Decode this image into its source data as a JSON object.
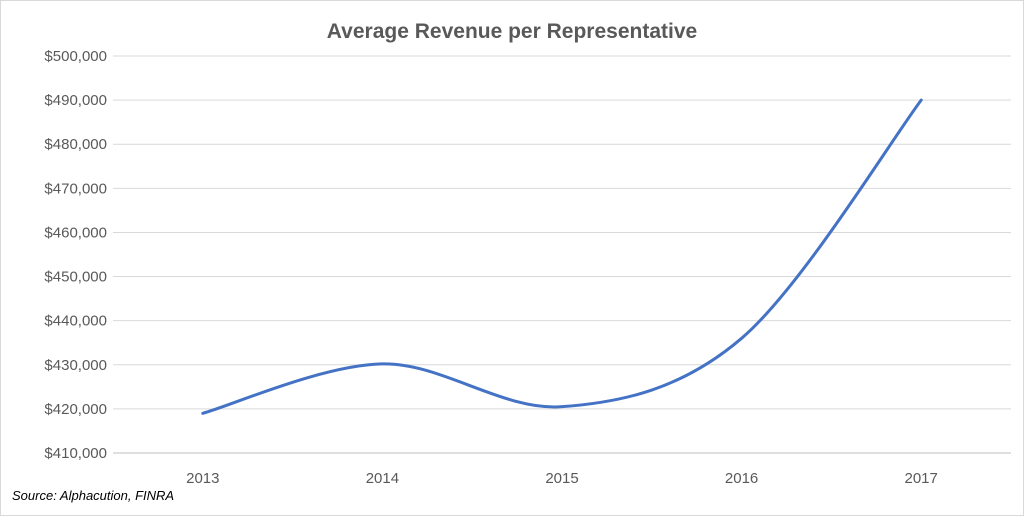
{
  "chart_data": {
    "type": "line",
    "title": "Average Revenue per Representative",
    "xlabel": "",
    "ylabel": "",
    "categories": [
      "2013",
      "2014",
      "2015",
      "2016",
      "2017"
    ],
    "series": [
      {
        "name": "Average Revenue per Representative",
        "values": [
          419000,
          430200,
          420500,
          436000,
          490000
        ]
      }
    ],
    "ylim": [
      410000,
      500000
    ],
    "y_ticks": [
      410000,
      420000,
      430000,
      440000,
      450000,
      460000,
      470000,
      480000,
      490000,
      500000
    ],
    "y_tick_labels": [
      "$410,000",
      "$420,000",
      "$430,000",
      "$440,000",
      "$450,000",
      "$460,000",
      "$470,000",
      "$480,000",
      "$490,000",
      "$500,000"
    ],
    "grid": true,
    "line_style": "smooth",
    "legend": "none",
    "source": "Source: Alphacution, FINRA"
  },
  "colors": {
    "line": "#4472c4",
    "grid": "#d9d9d9",
    "axis": "#bfbfbf",
    "text": "#595959"
  }
}
